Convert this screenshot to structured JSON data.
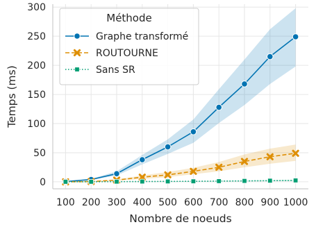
{
  "chart_data": {
    "type": "line",
    "xlabel": "Nombre de noeuds",
    "ylabel": "Temps (ms)",
    "x": [
      100,
      200,
      300,
      400,
      500,
      600,
      700,
      800,
      900,
      1000
    ],
    "xlim": [
      50,
      1050
    ],
    "ylim": [
      -12,
      305
    ],
    "yticks": [
      0,
      50,
      100,
      150,
      200,
      250,
      300
    ],
    "grid": "on",
    "legend": {
      "title": "Méthode",
      "placement": "top-left"
    },
    "series": [
      {
        "name": "Graphe transformé",
        "color": "#0173b2",
        "linestyle": "solid",
        "marker": "circle",
        "values": [
          0.5,
          4,
          14,
          38,
          60,
          86,
          128,
          168,
          215,
          249
        ],
        "ci_low": [
          0,
          3,
          11,
          30,
          48,
          67,
          101,
          132,
          168,
          198
        ],
        "ci_high": [
          1,
          5,
          18,
          46,
          73,
          107,
          159,
          210,
          262,
          298
        ]
      },
      {
        "name": "ROUTOURNE",
        "color": "#de8f05",
        "linestyle": "dashed",
        "marker": "x",
        "values": [
          0,
          0.5,
          3,
          8,
          12,
          18,
          25,
          35,
          43,
          49
        ],
        "ci_low": [
          0,
          0.3,
          2,
          5,
          8,
          13,
          18,
          25,
          31,
          36
        ],
        "ci_high": [
          0,
          0.7,
          4,
          11,
          17,
          24,
          34,
          47,
          57,
          64
        ]
      },
      {
        "name": "Sans SR",
        "color": "#029e73",
        "linestyle": "dotted",
        "marker": "square",
        "values": [
          0,
          0.1,
          0.3,
          0.5,
          0.7,
          0.9,
          1.2,
          1.6,
          2,
          2.4
        ],
        "ci_low": [
          0,
          0.05,
          0.2,
          0.3,
          0.4,
          0.5,
          0.7,
          0.9,
          1.2,
          1.4
        ],
        "ci_high": [
          0,
          0.15,
          0.4,
          0.7,
          1.0,
          1.3,
          1.7,
          2.3,
          2.9,
          3.5
        ]
      }
    ]
  }
}
